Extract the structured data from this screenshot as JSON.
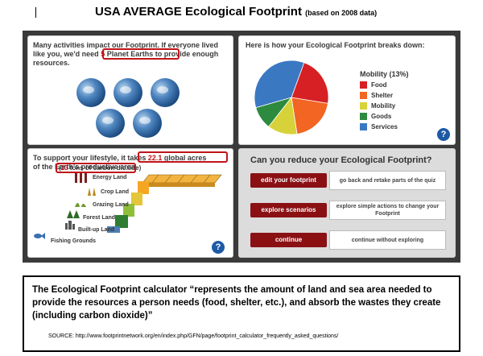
{
  "title": {
    "main": "USA  AVERAGE Ecological Footprint",
    "note": "(based on 2008 data)"
  },
  "planets_panel": {
    "text_before": "Many activities impact our Footprint. If everyone lived like you, we'd ",
    "need_word": "need ",
    "count": "5",
    "planet_earths": " Planet Earths",
    "text_after": " to provide enough resources.",
    "planet_count": 5
  },
  "breakdown_panel": {
    "heading": "Here is how your Ecological Footprint breaks down:",
    "legend_title": "Mobility (13%)",
    "categories": [
      {
        "label": "Food",
        "color": "#d62024"
      },
      {
        "label": "Shelter",
        "color": "#f26522"
      },
      {
        "label": "Mobility",
        "color": "#d7d23a"
      },
      {
        "label": "Goods",
        "color": "#2d8a3e"
      },
      {
        "label": "Services",
        "color": "#3a78c2"
      }
    ]
  },
  "chart_data": {
    "type": "pie",
    "labels": [
      "Food",
      "Shelter",
      "Mobility",
      "Goods",
      "Services"
    ],
    "values": [
      22,
      20,
      13,
      10,
      35
    ],
    "colors": [
      "#d62024",
      "#f26522",
      "#d7d23a",
      "#2d8a3e",
      "#3a78c2"
    ]
  },
  "acres_panel": {
    "text1": "To support your lifestyle, it ",
    "takes": "takes ",
    "acres": "22.1",
    "global_acres": " global acres",
    "text2": "of the Earth's productive area.",
    "carbon_value": "23",
    "carbon_text": " tons of carbon dioxide)",
    "land_types": [
      "Energy Land",
      "Crop Land",
      "Grazing Land",
      "Forest Land",
      "Built-up Land",
      "Fishing Grounds"
    ]
  },
  "reduce_panel": {
    "heading": "Can you reduce your Ecological Footprint?",
    "actions": [
      {
        "label": "edit your footprint",
        "desc": "go back and retake parts of the quiz"
      },
      {
        "label": "explore scenarios",
        "desc": "explore simple actions to change your Footprint"
      },
      {
        "label": "continue",
        "desc": "continue without exploring"
      }
    ]
  },
  "help_label": "?",
  "caption": {
    "text": "The Ecological Footprint calculator  “represents the amount of land and sea area needed to provide the resources a person needs (food, shelter, etc.), and absorb the wastes they create (including carbon dioxide)”",
    "source": "SOURCE:   http://www.footprintnetwork.org/en/index.php/GFN/page/footprint_calculator_frequently_asked_questions/"
  }
}
